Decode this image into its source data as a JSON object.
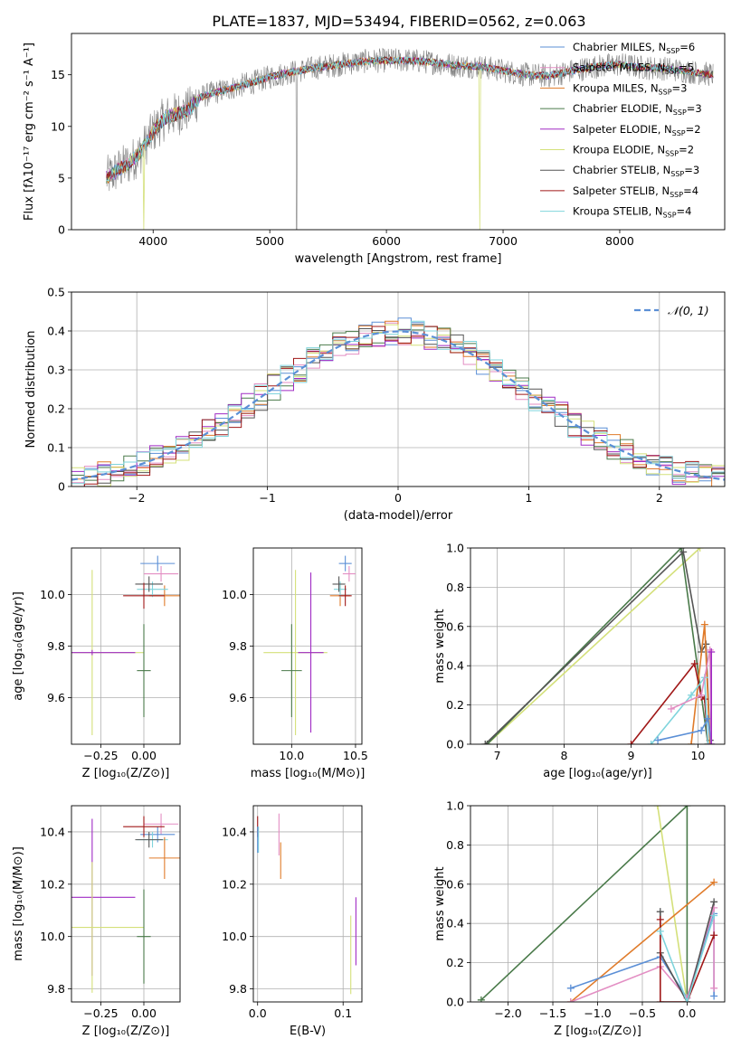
{
  "figure_title": "PLATE=1837, MJD=53494, FIBERID=0562, z=0.063",
  "colors": {
    "Chabrier MILES": "#5b8fd6",
    "Salpeter MILES": "#e38ec3",
    "Kroupa MILES": "#e07b2a",
    "Chabrier ELODIE": "#4a7a4a",
    "Salpeter ELODIE": "#a02bc4",
    "Kroupa ELODIE": "#d4e07a",
    "Chabrier STELIB": "#555555",
    "Salpeter STELIB": "#a01818",
    "Kroupa STELIB": "#7fd4dc",
    "data": "#808080",
    "normal": "#5b8fd6"
  },
  "chart_data": [
    {
      "id": "spectrum",
      "type": "line",
      "title": "PLATE=1837, MJD=53494, FIBERID=0562, z=0.063",
      "xlabel": "wavelength [Angstrom, rest frame]",
      "ylabel": "Flux [fλ10⁻¹⁷ erg cm⁻² s⁻¹ A⁻¹]",
      "xlim": [
        3300,
        8900
      ],
      "ylim": [
        0,
        19
      ],
      "xticks": [
        4000,
        5000,
        6000,
        7000,
        8000
      ],
      "yticks": [
        0,
        5,
        10,
        15
      ],
      "grid": false,
      "legend_position": "top-right",
      "legend": [
        "Chabrier MILES, N_SSP=6",
        "Salpeter MILES, N_SSP=5",
        "Kroupa MILES, N_SSP=3",
        "Chabrier ELODIE, N_SSP=3",
        "Salpeter ELODIE, N_SSP=2",
        "Kroupa ELODIE, N_SSP=2",
        "Chabrier STELIB, N_SSP=3",
        "Salpeter STELIB, N_SSP=4",
        "Kroupa STELIB, N_SSP=4"
      ],
      "legend_keys": [
        "Chabrier MILES",
        "Salpeter MILES",
        "Kroupa MILES",
        "Chabrier ELODIE",
        "Salpeter ELODIE",
        "Kroupa ELODIE",
        "Chabrier STELIB",
        "Salpeter STELIB",
        "Kroupa STELIB"
      ],
      "continuum": {
        "x": [
          3600,
          3700,
          3800,
          3900,
          4000,
          4100,
          4200,
          4300,
          4400,
          4500,
          4600,
          4700,
          4800,
          4900,
          5000,
          5200,
          5400,
          5600,
          5800,
          6000,
          6200,
          6400,
          6600,
          6800,
          7000,
          7200,
          7400,
          7600,
          7800,
          8000,
          8200,
          8400,
          8600,
          8800
        ],
        "y": [
          5.0,
          5.8,
          6.5,
          7.6,
          9.5,
          10.8,
          11.2,
          11.6,
          12.8,
          13.2,
          13.5,
          13.8,
          14.1,
          14.4,
          14.8,
          15.3,
          15.7,
          16.0,
          16.3,
          16.4,
          16.4,
          16.2,
          15.9,
          15.8,
          15.4,
          15.0,
          14.9,
          15.4,
          15.8,
          16.0,
          15.7,
          15.6,
          15.3,
          15.0
        ]
      }
    },
    {
      "id": "residuals",
      "type": "line",
      "xlabel": "(data-model)/error",
      "ylabel": "Normed distribution",
      "xlim": [
        -2.5,
        2.5
      ],
      "ylim": [
        0,
        0.5
      ],
      "xticks": [
        -2,
        -1,
        0,
        1,
        2
      ],
      "yticks": [
        0.0,
        0.1,
        0.2,
        0.3,
        0.4,
        0.5
      ],
      "grid": true,
      "legend_position": "top-right",
      "legend": [
        "𝒩(0, 1)"
      ],
      "series_mean": 0.0,
      "series_sigma": 1.0
    },
    {
      "id": "age-Z",
      "type": "scatter",
      "xlabel": "Z [log₁₀(Z/Z⊙)]",
      "ylabel": "age  [log₁₀(age/yr)]",
      "xlim": [
        -0.42,
        0.21
      ],
      "ylim": [
        9.42,
        10.18
      ],
      "xticks": [
        -0.25,
        0.0
      ],
      "xticklabels": [
        "−0.25",
        "0.00"
      ],
      "yticks": [
        9.6,
        9.8,
        10.0
      ],
      "yticklabels": [
        "9.6",
        "9.8",
        "10.0"
      ],
      "grid": true,
      "points": [
        {
          "model": "Chabrier MILES",
          "x": 0.08,
          "y": 10.12,
          "xerr": 0.1,
          "yerr": 0.03
        },
        {
          "model": "Salpeter MILES",
          "x": 0.1,
          "y": 10.08,
          "xerr": 0.1,
          "yerr": 0.03
        },
        {
          "model": "Kroupa MILES",
          "x": 0.12,
          "y": 9.995,
          "xerr": 0.09,
          "yerr": 0.04
        },
        {
          "model": "Kroupa STELIB",
          "x": 0.05,
          "y": 10.02,
          "xerr": 0.09,
          "yerr": 0.03
        },
        {
          "model": "Chabrier STELIB",
          "x": 0.03,
          "y": 10.04,
          "xerr": 0.08,
          "yerr": 0.03
        },
        {
          "model": "Salpeter STELIB",
          "x": 0.0,
          "y": 9.995,
          "xerr": 0.12,
          "yerr": 0.05
        },
        {
          "model": "Kroupa ELODIE",
          "x": -0.3,
          "y": 9.775,
          "xerr": 0.3,
          "yerr": 0.32
        },
        {
          "model": "Salpeter ELODIE",
          "x": -0.3,
          "y": 9.775,
          "xerr": 0.25,
          "yerr": 0.01
        },
        {
          "model": "Chabrier ELODIE",
          "x": 0.0,
          "y": 9.705,
          "xerr": 0.04,
          "yerr": 0.18
        }
      ]
    },
    {
      "id": "age-mass",
      "type": "scatter",
      "xlabel": "mass [log₁₀(M/M⊙)]",
      "ylabel": "",
      "xlim": [
        9.7,
        10.55
      ],
      "ylim": [
        9.42,
        10.18
      ],
      "xticks": [
        10.0,
        10.5
      ],
      "xticklabels": [
        "10.0",
        "10.5"
      ],
      "yticks": [
        9.6,
        9.8,
        10.0
      ],
      "yticklabels": [
        "9.6",
        "9.8",
        "10.0"
      ],
      "grid": true,
      "points": [
        {
          "model": "Chabrier MILES",
          "x": 10.42,
          "y": 10.12,
          "xerr": 0.05,
          "yerr": 0.03
        },
        {
          "model": "Salpeter MILES",
          "x": 10.45,
          "y": 10.08,
          "xerr": 0.05,
          "yerr": 0.03
        },
        {
          "model": "Kroupa MILES",
          "x": 10.38,
          "y": 9.995,
          "xerr": 0.08,
          "yerr": 0.04
        },
        {
          "model": "Kroupa STELIB",
          "x": 10.38,
          "y": 10.02,
          "xerr": 0.05,
          "yerr": 0.03
        },
        {
          "model": "Chabrier STELIB",
          "x": 10.37,
          "y": 10.04,
          "xerr": 0.05,
          "yerr": 0.03
        },
        {
          "model": "Salpeter STELIB",
          "x": 10.42,
          "y": 9.995,
          "xerr": 0.05,
          "yerr": 0.04
        },
        {
          "model": "Kroupa ELODIE",
          "x": 10.03,
          "y": 9.775,
          "xerr": 0.25,
          "yerr": 0.32
        },
        {
          "model": "Salpeter ELODIE",
          "x": 10.15,
          "y": 9.775,
          "xerr": 0.1,
          "yerr": 0.31
        },
        {
          "model": "Chabrier ELODIE",
          "x": 10.0,
          "y": 9.705,
          "xerr": 0.08,
          "yerr": 0.18
        }
      ]
    },
    {
      "id": "massweight-age",
      "type": "line",
      "xlabel": "age  [log₁₀(age/yr)]",
      "ylabel": "mass weight",
      "xlim": [
        6.6,
        10.4
      ],
      "ylim": [
        0,
        1.0
      ],
      "xticks": [
        7,
        8,
        9,
        10
      ],
      "xticklabels": [
        "7",
        "8",
        "9",
        "10"
      ],
      "yticks": [
        0.0,
        0.2,
        0.4,
        0.6,
        0.8,
        1.0
      ],
      "yticklabels": [
        "0.0",
        "0.2",
        "0.4",
        "0.6",
        "0.8",
        "1.0"
      ],
      "grid": true,
      "series": [
        {
          "model": "Kroupa ELODIE",
          "x": [
            6.85,
            10.03
          ],
          "y": [
            0.0,
            1.0
          ]
        },
        {
          "model": "Chabrier ELODIE",
          "x": [
            6.85,
            9.75,
            10.15
          ],
          "y": [
            0.0,
            1.0,
            0.0
          ]
        },
        {
          "model": "Chabrier STELIB",
          "x": [
            6.82,
            9.78,
            10.05,
            10.12,
            10.18
          ],
          "y": [
            0.0,
            0.98,
            0.47,
            0.51,
            0.02
          ]
        },
        {
          "model": "Kroupa MILES",
          "x": [
            9.9,
            10.1,
            10.18
          ],
          "y": [
            0.0,
            0.61,
            0.0
          ]
        },
        {
          "model": "Salpeter STELIB",
          "x": [
            9.0,
            9.95,
            10.05,
            10.1,
            10.15
          ],
          "y": [
            0.0,
            0.41,
            0.24,
            0.23,
            0.0
          ]
        },
        {
          "model": "Kroupa STELIB",
          "x": [
            9.3,
            9.9,
            10.1,
            10.15
          ],
          "y": [
            0.0,
            0.25,
            0.34,
            0.0
          ]
        },
        {
          "model": "Chabrier MILES",
          "x": [
            9.4,
            10.05,
            10.15,
            10.2
          ],
          "y": [
            0.02,
            0.07,
            0.13,
            0.0
          ]
        },
        {
          "model": "Salpeter MILES",
          "x": [
            9.6,
            10.05,
            10.18,
            10.2
          ],
          "y": [
            0.18,
            0.25,
            0.48,
            0.0
          ]
        },
        {
          "model": "Salpeter ELODIE",
          "x": [
            10.2,
            10.2
          ],
          "y": [
            0.0,
            0.47
          ]
        }
      ]
    },
    {
      "id": "mass-Z",
      "type": "scatter",
      "xlabel": "Z [log₁₀(Z/Z⊙)]",
      "ylabel": "mass [log₁₀(M/M⊙)]",
      "xlim": [
        -0.42,
        0.21
      ],
      "ylim": [
        9.75,
        10.5
      ],
      "xticks": [
        -0.25,
        0.0
      ],
      "xticklabels": [
        "−0.25",
        "0.00"
      ],
      "yticks": [
        9.8,
        10.0,
        10.2,
        10.4
      ],
      "yticklabels": [
        "9.8",
        "10.0",
        "10.2",
        "10.4"
      ],
      "grid": true,
      "points": [
        {
          "model": "Salpeter MILES",
          "x": 0.1,
          "y": 10.43,
          "xerr": 0.1,
          "yerr": 0.04
        },
        {
          "model": "Chabrier MILES",
          "x": 0.08,
          "y": 10.39,
          "xerr": 0.1,
          "yerr": 0.03
        },
        {
          "model": "Kroupa STELIB",
          "x": 0.05,
          "y": 10.37,
          "xerr": 0.09,
          "yerr": 0.03
        },
        {
          "model": "Salpeter STELIB",
          "x": 0.0,
          "y": 10.42,
          "xerr": 0.12,
          "yerr": 0.04
        },
        {
          "model": "Chabrier STELIB",
          "x": 0.03,
          "y": 10.37,
          "xerr": 0.08,
          "yerr": 0.03
        },
        {
          "model": "Kroupa MILES",
          "x": 0.12,
          "y": 10.3,
          "xerr": 0.09,
          "yerr": 0.08
        },
        {
          "model": "Salpeter ELODIE",
          "x": -0.3,
          "y": 10.15,
          "xerr": 0.25,
          "yerr": 0.3
        },
        {
          "model": "Kroupa ELODIE",
          "x": -0.3,
          "y": 10.035,
          "xerr": 0.3,
          "yerr": 0.25
        },
        {
          "model": "Chabrier ELODIE",
          "x": 0.0,
          "y": 10.0,
          "xerr": 0.04,
          "yerr": 0.18
        }
      ]
    },
    {
      "id": "mass-EBV",
      "type": "scatter",
      "xlabel": "E(B-V)",
      "ylabel": "",
      "xlim": [
        -0.005,
        0.122
      ],
      "ylim": [
        9.75,
        10.5
      ],
      "xticks": [
        0.0,
        0.1
      ],
      "xticklabels": [
        "0.0",
        "0.1"
      ],
      "yticks": [
        9.8,
        10.0,
        10.2,
        10.4
      ],
      "yticklabels": [
        "9.8",
        "10.0",
        "10.2",
        "10.4"
      ],
      "grid": true,
      "points": [
        {
          "model": "Salpeter STELIB",
          "x": 0.0,
          "y": 10.42,
          "xerr": 0,
          "yerr": 0.04
        },
        {
          "model": "Kroupa STELIB",
          "x": 0.001,
          "y": 10.37,
          "xerr": 0,
          "yerr": 0.05
        },
        {
          "model": "Chabrier MILES",
          "x": 0.0,
          "y": 10.37,
          "xerr": 0,
          "yerr": 0.05
        },
        {
          "model": "Salpeter MILES",
          "x": 0.025,
          "y": 10.39,
          "xerr": 0,
          "yerr": 0.08
        },
        {
          "model": "Kroupa MILES",
          "x": 0.027,
          "y": 10.29,
          "xerr": 0,
          "yerr": 0.07
        },
        {
          "model": "Kroupa ELODIE",
          "x": 0.109,
          "y": 9.93,
          "xerr": 0,
          "yerr": 0.15
        },
        {
          "model": "Salpeter ELODIE",
          "x": 0.115,
          "y": 10.02,
          "xerr": 0,
          "yerr": 0.13
        }
      ]
    },
    {
      "id": "massweight-Z",
      "type": "line",
      "xlabel": "Z [log₁₀(Z/Z⊙)]",
      "ylabel": "mass weight",
      "xlim": [
        -2.42,
        0.42
      ],
      "ylim": [
        0,
        1.0
      ],
      "xticks": [
        -2.0,
        -1.5,
        -1.0,
        -0.5,
        0.0
      ],
      "xticklabels": [
        "−2.0",
        "−1.5",
        "−1.0",
        "−0.5",
        "0.0"
      ],
      "yticks": [
        0.0,
        0.2,
        0.4,
        0.6,
        0.8,
        1.0
      ],
      "yticklabels": [
        "0.0",
        "0.2",
        "0.4",
        "0.6",
        "0.8",
        "1.0"
      ],
      "grid": true,
      "series": [
        {
          "model": "Chabrier ELODIE",
          "x": [
            -2.3,
            0.0,
            0.0
          ],
          "y": [
            0.01,
            1.0,
            0.0
          ]
        },
        {
          "model": "Kroupa ELODIE",
          "x": [
            -0.33,
            0.0
          ],
          "y": [
            1.0,
            0.0
          ]
        },
        {
          "model": "Kroupa MILES",
          "x": [
            -1.3,
            0.3
          ],
          "y": [
            0.0,
            0.61
          ]
        },
        {
          "model": "Chabrier MILES",
          "x": [
            -1.3,
            -0.3,
            0.0,
            0.3,
            0.3
          ],
          "y": [
            0.07,
            0.23,
            0.02,
            0.45,
            0.03
          ]
        },
        {
          "model": "Salpeter MILES",
          "x": [
            -1.3,
            -0.3,
            0.0,
            0.3,
            0.3
          ],
          "y": [
            0.0,
            0.18,
            0.02,
            0.48,
            0.07
          ]
        },
        {
          "model": "Chabrier STELIB",
          "x": [
            -0.3,
            -0.3,
            0.0,
            0.3
          ],
          "y": [
            0.46,
            0.25,
            0.0,
            0.51
          ]
        },
        {
          "model": "Salpeter STELIB",
          "x": [
            -0.3,
            -0.3,
            0.0,
            0.3
          ],
          "y": [
            0.42,
            0.0,
            0.0,
            0.34
          ]
        },
        {
          "model": "Kroupa STELIB",
          "x": [
            -0.3,
            0.0,
            0.3
          ],
          "y": [
            0.36,
            0.0,
            0.44
          ]
        }
      ]
    }
  ]
}
